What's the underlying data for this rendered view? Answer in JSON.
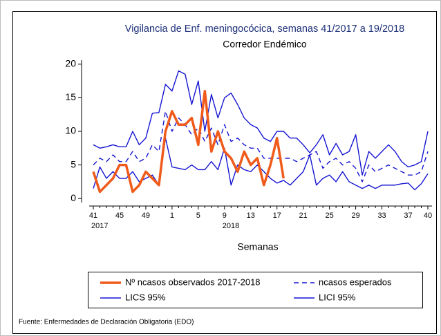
{
  "chart_data": {
    "type": "line",
    "title": "Vigilancia de Enf. meningocócica, semanas 41/2017 a 19/2018",
    "subtitle": "Corredor Endémico",
    "x_label": "Semanas",
    "source": "Fuente: Enfermedades de Declaración Obligatoria (EDO)",
    "categories": [
      "41",
      null,
      null,
      null,
      "45",
      null,
      null,
      null,
      "49",
      null,
      null,
      null,
      "1",
      null,
      null,
      null,
      "5",
      null,
      null,
      null,
      "9",
      null,
      null,
      null,
      "13",
      null,
      null,
      null,
      "17",
      null,
      null,
      null,
      "21",
      null,
      null,
      null,
      "25",
      null,
      null,
      null,
      "29",
      null,
      null,
      null,
      "33",
      null,
      null,
      null,
      "37",
      null,
      null,
      "40"
    ],
    "year_labels": [
      "2017",
      null,
      null,
      null,
      null,
      null,
      null,
      null,
      null,
      null,
      null,
      null,
      null,
      null,
      null,
      null,
      null,
      null,
      null,
      null,
      "2018",
      null,
      null,
      null,
      null,
      null,
      null,
      null,
      null,
      null,
      null,
      null,
      null,
      null,
      null,
      null,
      null,
      null,
      null,
      null,
      null,
      null,
      null,
      null,
      null,
      null,
      null,
      null,
      null,
      null,
      null,
      null
    ],
    "ylim": [
      -0.6,
      20.6
    ],
    "yticks": [
      0,
      5,
      10,
      15,
      20
    ],
    "series": [
      {
        "name": "Nº ncasos observados 2017-2018",
        "color": "#f05a1a",
        "width": 3.5,
        "dash": false,
        "values": [
          4,
          1,
          2,
          3,
          5,
          5,
          1,
          2,
          4,
          3,
          2,
          10,
          13,
          11,
          11,
          12,
          8,
          16,
          7,
          10,
          7,
          6,
          4,
          7,
          5,
          6,
          2,
          5,
          9,
          3,
          null,
          null,
          null,
          null,
          null,
          null,
          null,
          null,
          null,
          null,
          null,
          null,
          null,
          null,
          null,
          null,
          null,
          null,
          null,
          null,
          null,
          null
        ]
      },
      {
        "name": "ncasos esperados",
        "color": "#1414d2",
        "width": 1.4,
        "dash": true,
        "values": [
          5,
          6,
          5.5,
          6.5,
          5.5,
          5.5,
          7,
          5.5,
          6,
          8,
          7,
          13,
          10,
          12,
          11,
          9.5,
          10.5,
          8.5,
          10.5,
          8,
          11,
          8.5,
          9,
          8,
          7.5,
          7.5,
          6,
          6,
          6,
          6,
          6,
          5.5,
          6,
          6.5,
          7,
          4.5,
          5.5,
          6,
          5,
          5.5,
          4.5,
          2.5,
          5,
          4,
          4.5,
          5,
          4.5,
          4,
          3.5,
          3.5,
          4,
          7
        ]
      },
      {
        "name": "LICS 95%",
        "color": "#1414d2",
        "width": 1.4,
        "dash": false,
        "values": [
          8,
          7.5,
          7.7,
          8,
          7.7,
          7.7,
          10,
          8,
          9,
          12.7,
          12.8,
          17,
          16,
          19,
          18.5,
          14,
          17.5,
          10,
          15.5,
          12,
          15,
          15.7,
          14,
          12,
          11,
          10.5,
          9,
          8.5,
          10,
          10,
          9,
          9,
          8,
          6.8,
          8,
          9.5,
          6.5,
          8.2,
          6.5,
          7,
          9.5,
          3.5,
          7,
          6,
          7,
          8,
          7,
          5.5,
          4.7,
          5,
          5.5,
          10
        ]
      },
      {
        "name": "LICI 95%",
        "color": "#1414d2",
        "width": 1.4,
        "dash": false,
        "values": [
          1.5,
          4.7,
          3,
          4,
          3,
          3,
          4,
          2.5,
          3,
          3.5,
          2,
          9,
          4.7,
          4.5,
          4.3,
          5,
          4.3,
          4.3,
          5.5,
          4.3,
          7.5,
          2,
          5,
          4.3,
          4,
          5,
          4,
          3,
          2.3,
          2.7,
          2,
          3,
          4,
          6.5,
          2,
          3,
          3.5,
          2.5,
          4,
          2.5,
          2,
          1.5,
          2,
          1.5,
          2,
          2,
          2,
          2.2,
          2.3,
          1.3,
          2.2,
          3.7
        ]
      }
    ]
  }
}
